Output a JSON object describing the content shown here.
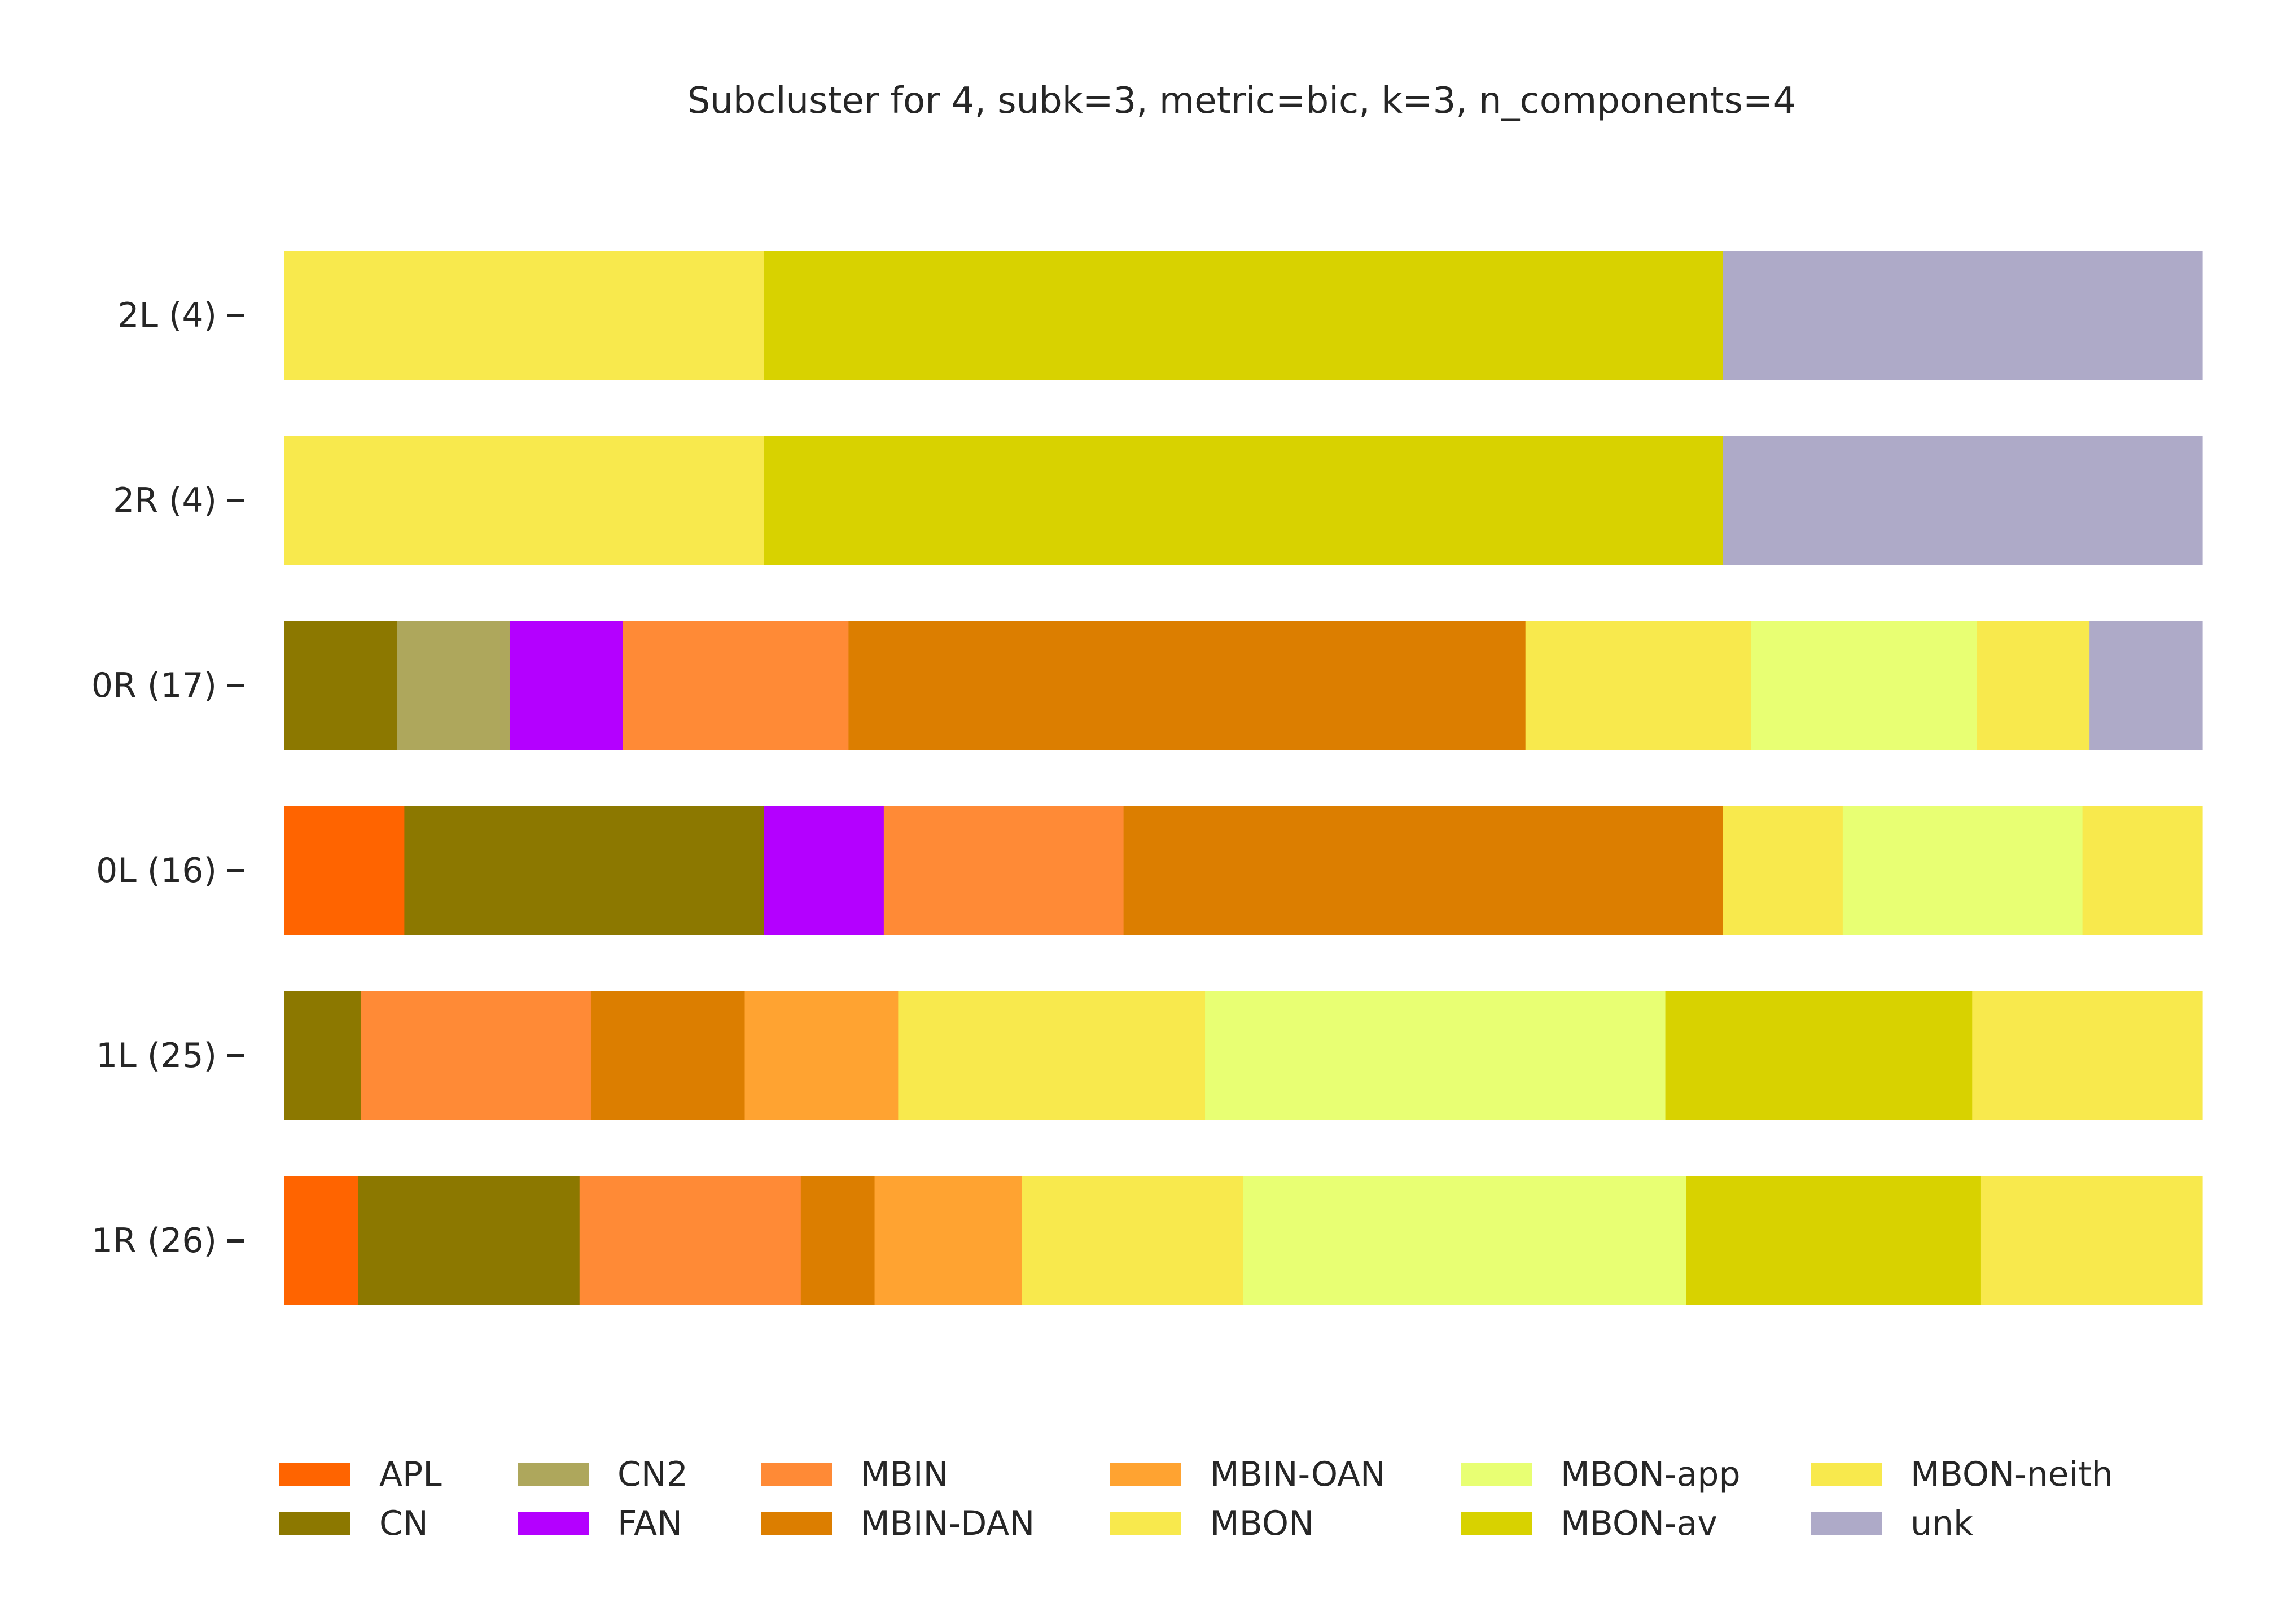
{
  "chart_data": {
    "type": "bar",
    "orientation": "horizontal",
    "stacked": true,
    "normalized": true,
    "title": "Subcluster for 4, subk=3, metric=bic, k=3, n_components=4",
    "xlabel": "",
    "ylabel": "",
    "grid": false,
    "legend_position": "bottom",
    "categories": [
      "2L (4)",
      "2R (4)",
      "0R (17)",
      "0L (16)",
      "1L (25)",
      "1R (26)"
    ],
    "legend": [
      {
        "name": "APL",
        "color": "#ff6400"
      },
      {
        "name": "CN",
        "color": "#8c7800"
      },
      {
        "name": "CN2",
        "color": "#aea75c"
      },
      {
        "name": "FAN",
        "color": "#b400ff"
      },
      {
        "name": "MBIN",
        "color": "#ff8a36"
      },
      {
        "name": "MBIN-DAN",
        "color": "#dc7e00"
      },
      {
        "name": "MBIN-OAN",
        "color": "#ffa331"
      },
      {
        "name": "MBON",
        "color": "#f8e94d"
      },
      {
        "name": "MBON-app",
        "color": "#e8ff73"
      },
      {
        "name": "MBON-av",
        "color": "#d8d200"
      },
      {
        "name": "MBON-neith",
        "color": "#f8e94d"
      },
      {
        "name": "unk",
        "color": "#aeaac8"
      }
    ],
    "rows": [
      {
        "label": "2L (4)",
        "segments": [
          {
            "type": "MBON",
            "count": 1
          },
          {
            "type": "MBON-av",
            "count": 2
          },
          {
            "type": "unk",
            "count": 1
          }
        ]
      },
      {
        "label": "2R (4)",
        "segments": [
          {
            "type": "MBON",
            "count": 1
          },
          {
            "type": "MBON-av",
            "count": 2
          },
          {
            "type": "unk",
            "count": 1
          }
        ]
      },
      {
        "label": "0R (17)",
        "segments": [
          {
            "type": "CN",
            "count": 1
          },
          {
            "type": "CN2",
            "count": 1
          },
          {
            "type": "FAN",
            "count": 1
          },
          {
            "type": "MBIN",
            "count": 2
          },
          {
            "type": "MBIN-DAN",
            "count": 6
          },
          {
            "type": "MBON",
            "count": 2
          },
          {
            "type": "MBON-app",
            "count": 2
          },
          {
            "type": "MBON-neith",
            "count": 1
          },
          {
            "type": "unk",
            "count": 1
          }
        ]
      },
      {
        "label": "0L (16)",
        "segments": [
          {
            "type": "APL",
            "count": 1
          },
          {
            "type": "CN",
            "count": 3
          },
          {
            "type": "FAN",
            "count": 1
          },
          {
            "type": "MBIN",
            "count": 2
          },
          {
            "type": "MBIN-DAN",
            "count": 5
          },
          {
            "type": "MBON",
            "count": 1
          },
          {
            "type": "MBON-app",
            "count": 2
          },
          {
            "type": "MBON-neith",
            "count": 1
          }
        ]
      },
      {
        "label": "1L (25)",
        "segments": [
          {
            "type": "CN",
            "count": 1
          },
          {
            "type": "MBIN",
            "count": 3
          },
          {
            "type": "MBIN-DAN",
            "count": 2
          },
          {
            "type": "MBIN-OAN",
            "count": 2
          },
          {
            "type": "MBON",
            "count": 4
          },
          {
            "type": "MBON-app",
            "count": 6
          },
          {
            "type": "MBON-av",
            "count": 4
          },
          {
            "type": "MBON-neith",
            "count": 3
          }
        ]
      },
      {
        "label": "1R (26)",
        "segments": [
          {
            "type": "APL",
            "count": 1
          },
          {
            "type": "CN",
            "count": 3
          },
          {
            "type": "MBIN",
            "count": 3
          },
          {
            "type": "MBIN-DAN",
            "count": 1
          },
          {
            "type": "MBIN-OAN",
            "count": 2
          },
          {
            "type": "MBON",
            "count": 3
          },
          {
            "type": "MBON-app",
            "count": 6
          },
          {
            "type": "MBON-av",
            "count": 4
          },
          {
            "type": "MBON-neith",
            "count": 3
          }
        ]
      }
    ]
  }
}
